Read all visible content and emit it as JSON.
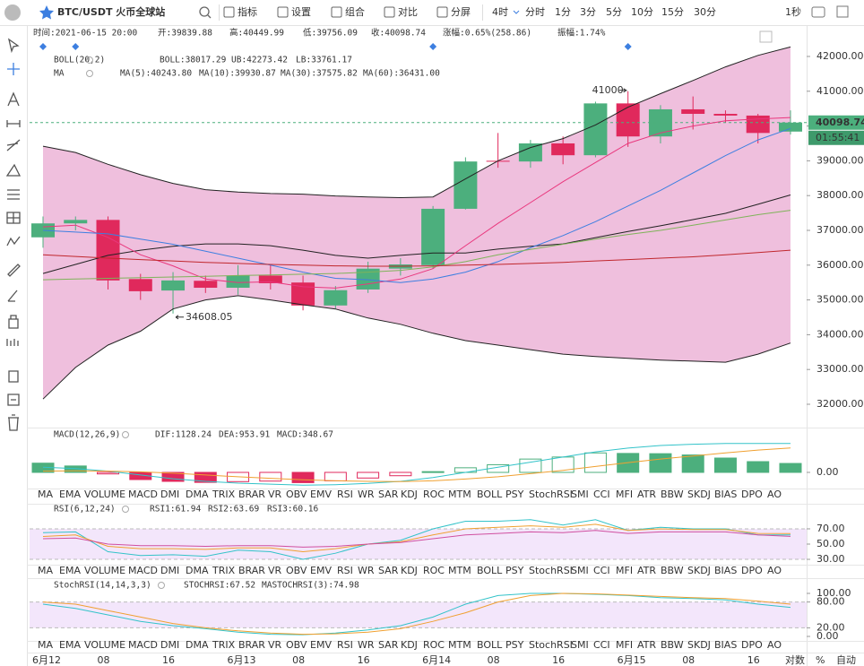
{
  "toolbar": {
    "title": "BTC/USDT 火币全球站",
    "buttons": [
      "指标",
      "设置",
      "组合",
      "对比",
      "分屏"
    ],
    "intervals": [
      "4时",
      "分时",
      "1分",
      "3分",
      "5分",
      "10分",
      "15分",
      "30分"
    ],
    "active_interval": 0,
    "refresh": "1秒"
  },
  "info": [
    "时间:2021-06-15 20:00",
    "开:39839.88",
    "高:40449.99",
    "低:39756.09",
    "收:40098.74",
    "涨幅:0.65%(258.86)",
    "振幅:1.74%"
  ],
  "indicator_tabs": [
    "MA",
    "EMA",
    "VOLUME",
    "MACD",
    "DMI",
    "DMA",
    "TRIX",
    "BRAR",
    "VR",
    "OBV",
    "EMV",
    "RSI",
    "WR",
    "SAR",
    "KDJ",
    "ROC",
    "MTM",
    "BOLL",
    "PSY",
    "StochRSI",
    "SMI",
    "CCI",
    "MFI",
    "ATR",
    "BBW",
    "SKDJ",
    "BIAS",
    "DPO",
    "AO"
  ],
  "tab_rows": [
    {
      "active": 3,
      "disabled": [
        19
      ]
    },
    {
      "active": 11,
      "disabled": [
        3,
        19
      ]
    },
    {
      "active": 19,
      "disabled": [
        3,
        11
      ]
    }
  ],
  "axis_options": [
    "对数",
    "%",
    "自动"
  ],
  "chart_data": [
    {
      "type": "candlestick",
      "indicator_labels": [
        "BOLL(20,2)",
        "MA"
      ],
      "categories": [
        "6月12",
        null,
        "08",
        null,
        "16",
        null,
        "6月13",
        null,
        "08",
        null,
        "16",
        null,
        "6月14",
        null,
        "08",
        null,
        "16",
        null,
        "6月15",
        null,
        "08",
        null,
        "16",
        null
      ],
      "open": [
        36800,
        37200,
        37300,
        35600,
        35270,
        35550,
        35350,
        35700,
        35500,
        34840,
        35300,
        35900,
        36000,
        37620,
        39000,
        38980,
        39500,
        39160,
        40650,
        39700,
        40480,
        40350,
        40300,
        39839.88
      ],
      "high": [
        37400,
        37400,
        37400,
        35750,
        35800,
        35700,
        36000,
        36000,
        35700,
        35400,
        36100,
        36200,
        37700,
        39100,
        39800,
        39600,
        39700,
        40700,
        41000,
        40600,
        40850,
        40450,
        40350,
        40449.99
      ],
      "low": [
        36500,
        37000,
        35300,
        35000,
        34608.05,
        35200,
        35150,
        35300,
        34700,
        34750,
        35200,
        35700,
        35900,
        37600,
        38800,
        38800,
        38900,
        39100,
        39400,
        39500,
        39900,
        40100,
        39500,
        39756.09
      ],
      "close": [
        37200,
        37300,
        35560,
        35250,
        35560,
        35350,
        35700,
        35480,
        34840,
        35280,
        35900,
        36020,
        37620,
        38980,
        38980,
        39500,
        39160,
        40650,
        39700,
        40480,
        40350,
        40300,
        39800,
        40098.74
      ],
      "up_color": "#4caf7d",
      "down_color": "#e0295c",
      "series": [
        {
          "name": "BOLL:38017.29",
          "color": "#222222",
          "values": [
            35760,
            36020,
            36280,
            36430,
            36540,
            36610,
            36610,
            36560,
            36430,
            36280,
            36200,
            36280,
            36350,
            36350,
            36460,
            36540,
            36610,
            36790,
            36970,
            37130,
            37310,
            37490,
            37750,
            38017.29
          ]
        },
        {
          "name": "UB:42273.42",
          "color": "#222222",
          "values": [
            39420,
            39240,
            38900,
            38600,
            38350,
            38170,
            38100,
            38060,
            38040,
            37990,
            37960,
            37940,
            37960,
            38480,
            39000,
            39380,
            39640,
            40030,
            40540,
            40930,
            41310,
            41700,
            42030,
            42273.42
          ]
        },
        {
          "name": "LB:33761.17",
          "color": "#222222",
          "values": [
            32150,
            33060,
            33700,
            34100,
            34740,
            35000,
            35120,
            35000,
            34860,
            34740,
            34480,
            34300,
            34040,
            33830,
            33700,
            33570,
            33440,
            33370,
            33320,
            33270,
            33240,
            33210,
            33440,
            33761.17
          ]
        },
        {
          "name": "MA(5):40243.80",
          "color": "#e9377d",
          "values": [
            37100,
            37150,
            36800,
            36300,
            35980,
            35600,
            35500,
            35520,
            35380,
            35340,
            35460,
            35600,
            35900,
            36560,
            37200,
            37800,
            38400,
            38950,
            39500,
            39800,
            40000,
            40150,
            40200,
            40243.8
          ]
        },
        {
          "name": "MA(10):39930.87",
          "color": "#3d7fe0",
          "values": [
            37000,
            36950,
            36900,
            36750,
            36600,
            36400,
            36200,
            36000,
            35800,
            35620,
            35580,
            35500,
            35600,
            35800,
            36100,
            36500,
            36850,
            37250,
            37700,
            38150,
            38650,
            39150,
            39600,
            39930.87
          ]
        },
        {
          "name": "MA(30):37575.82",
          "color": "#7fb35a",
          "values": [
            35580,
            35600,
            35620,
            35640,
            35660,
            35680,
            35700,
            35720,
            35740,
            35760,
            35800,
            35850,
            35950,
            36100,
            36300,
            36450,
            36600,
            36750,
            36880,
            37000,
            37150,
            37300,
            37450,
            37575.82
          ]
        },
        {
          "name": "MA(60):36431.00",
          "color": "#c0272d",
          "values": [
            36300,
            36250,
            36200,
            36160,
            36120,
            36080,
            36050,
            36020,
            36000,
            35980,
            35970,
            35970,
            35980,
            36000,
            36020,
            36050,
            36080,
            36120,
            36160,
            36200,
            36240,
            36300,
            36360,
            36431
          ]
        }
      ],
      "band_between": [
        1,
        2
      ],
      "band_color": "#efbfdd",
      "high_label": "41000",
      "low_label": "34608.05",
      "price_tag": "40098.74",
      "countdown": "01:55:41",
      "ylim": [
        31330,
        42850
      ],
      "yticks": [
        {
          "value": 32000,
          "label": "32000.00"
        },
        {
          "value": 33000,
          "label": "33000.00"
        },
        {
          "value": 34000,
          "label": "34000.00"
        },
        {
          "value": 35000,
          "label": "35000.00"
        },
        {
          "value": 36000,
          "label": "36000.00"
        },
        {
          "value": 37000,
          "label": "37000.00"
        },
        {
          "value": 38000,
          "label": "38000.00"
        },
        {
          "value": 39000,
          "label": "39000.00"
        },
        {
          "value": 40000,
          "label": "40000.00"
        },
        {
          "value": 41000,
          "label": "41000.00"
        },
        {
          "value": 42000,
          "label": "42000.00"
        }
      ]
    },
    {
      "type": "macd",
      "indicator_labels": [
        "MACD(12,26,9)"
      ],
      "name": "MACD:348.67",
      "up_color": "#4caf7d",
      "down_color": "#e0295c",
      "values": [
        360,
        250,
        -60,
        -280,
        -350,
        -390,
        -360,
        -340,
        -400,
        -330,
        -220,
        -130,
        30,
        180,
        300,
        520,
        600,
        760,
        740,
        730,
        680,
        560,
        420,
        348.67
      ],
      "series": [
        {
          "name": "DIF:1128.24",
          "color": "#33c3c9",
          "values": [
            200,
            150,
            50,
            -100,
            -250,
            -350,
            -420,
            -460,
            -500,
            -480,
            -430,
            -350,
            -200,
            0,
            200,
            400,
            600,
            800,
            950,
            1050,
            1100,
            1130,
            1130,
            1128.24
          ]
        },
        {
          "name": "DEA:953.91",
          "color": "#f0a030",
          "values": [
            50,
            60,
            50,
            20,
            -30,
            -100,
            -170,
            -230,
            -290,
            -330,
            -350,
            -360,
            -330,
            -260,
            -170,
            -50,
            80,
            230,
            380,
            520,
            640,
            760,
            870,
            953.91
          ]
        }
      ],
      "ylim": [
        -630,
        1645
      ],
      "yticks": [
        {
          "value": 0,
          "label": "0.00"
        }
      ]
    },
    {
      "type": "line",
      "indicator_labels": [
        "RSI(6,12,24)"
      ],
      "band": [
        30,
        70
      ],
      "band_color": "#f3e6fb",
      "series": [
        {
          "name": "RSI1:61.94",
          "color": "#33c3c9",
          "values": [
            65,
            66,
            40,
            35,
            36,
            34,
            42,
            40,
            30,
            38,
            50,
            55,
            70,
            80,
            80,
            82,
            75,
            82,
            68,
            72,
            70,
            70,
            62,
            61.94
          ]
        },
        {
          "name": "RSI2:63.69",
          "color": "#f0a030",
          "values": [
            60,
            62,
            47,
            44,
            44,
            43,
            45,
            45,
            40,
            44,
            50,
            53,
            62,
            70,
            72,
            74,
            72,
            76,
            68,
            70,
            69,
            69,
            64,
            63.69
          ]
        },
        {
          "name": "RSI3:60.16",
          "color": "#d04fa0",
          "values": [
            57,
            58,
            50,
            48,
            48,
            47,
            48,
            48,
            46,
            47,
            50,
            52,
            57,
            62,
            64,
            66,
            65,
            68,
            64,
            66,
            66,
            66,
            62,
            60.16
          ]
        }
      ],
      "ylim": [
        20.6,
        102.9
      ],
      "yticks": [
        {
          "value": 30,
          "label": "30.00"
        },
        {
          "value": 50,
          "label": "50.00"
        },
        {
          "value": 70,
          "label": "70.00"
        }
      ]
    },
    {
      "type": "line",
      "indicator_labels": [
        "StochRSI(14,14,3,3)"
      ],
      "band": [
        20,
        80
      ],
      "band_color": "#f3e6fb",
      "series": [
        {
          "name": "STOCHRSI:67.52",
          "color": "#33c3c9",
          "values": [
            75,
            65,
            50,
            35,
            25,
            18,
            10,
            5,
            4,
            8,
            15,
            25,
            45,
            75,
            95,
            100,
            100,
            98,
            95,
            90,
            88,
            85,
            75,
            67.52
          ]
        },
        {
          "name": "MASTOCHRSI(3):74.98",
          "color": "#f0a030",
          "values": [
            80,
            75,
            60,
            45,
            30,
            20,
            13,
            8,
            5,
            6,
            10,
            18,
            35,
            55,
            80,
            95,
            100,
            99,
            96,
            93,
            90,
            88,
            82,
            74.98
          ]
        }
      ],
      "ylim": [
        -10.4,
        135.4
      ],
      "yticks": [
        {
          "value": 0,
          "label": "0.00"
        },
        {
          "value": 20,
          "label": "20.00"
        },
        {
          "value": 80,
          "label": "80.00"
        },
        {
          "value": 100,
          "label": "100.00"
        }
      ]
    }
  ]
}
